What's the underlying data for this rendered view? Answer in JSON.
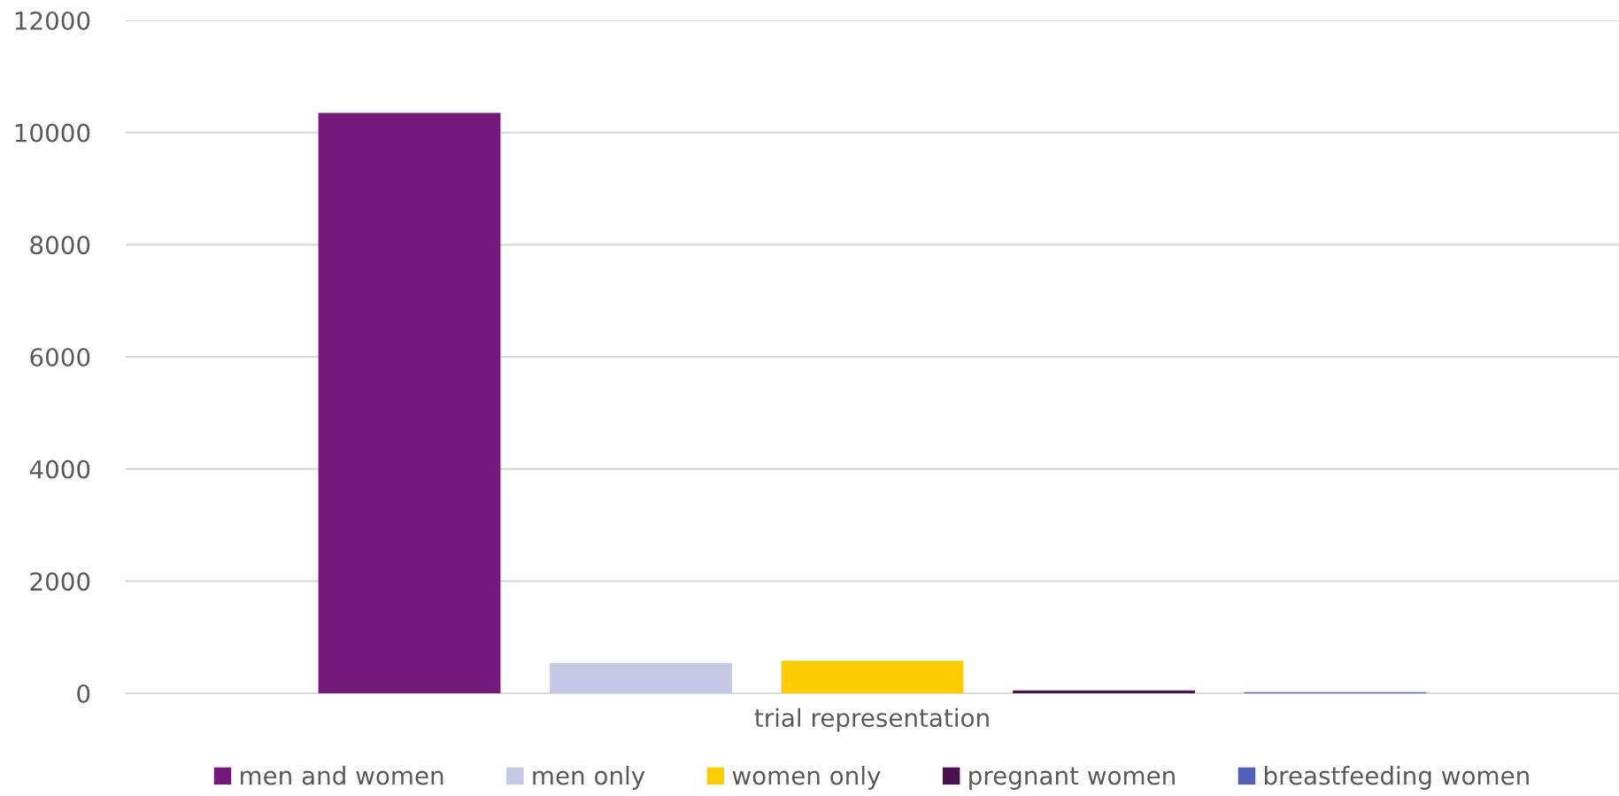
{
  "chart_data": {
    "type": "bar",
    "categories": [
      "trial representation"
    ],
    "series": [
      {
        "name": "men and women",
        "color": "#741a7a",
        "values": [
          10350
        ]
      },
      {
        "name": "men only",
        "color": "#c6c9e5",
        "values": [
          540
        ]
      },
      {
        "name": "women only",
        "color": "#ffcc00",
        "values": [
          580
        ]
      },
      {
        "name": "pregnant women",
        "color": "#4a1150",
        "values": [
          50
        ]
      },
      {
        "name": "breastfeeding women",
        "color": "#5060b8",
        "values": [
          20
        ]
      }
    ],
    "ylim": [
      0,
      12000
    ],
    "yticks": [
      0,
      2000,
      4000,
      6000,
      8000,
      10000,
      12000
    ],
    "grid": "y",
    "legend": "bottom"
  }
}
